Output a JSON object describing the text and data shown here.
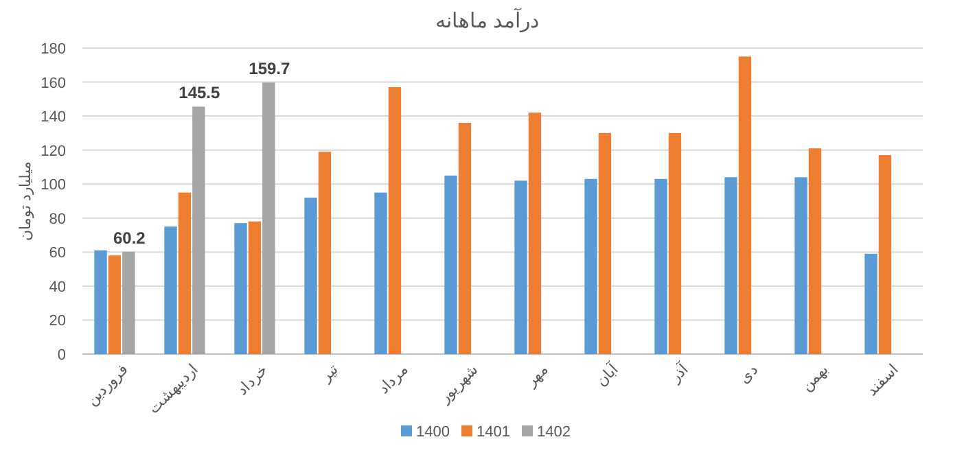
{
  "chart_data": {
    "type": "bar",
    "title": "درآمد ماهانه",
    "ylabel": "میلیارد تومان",
    "categories": [
      "فروردین",
      "اردیبهشت",
      "خرداد",
      "تیر",
      "مرداد",
      "شهریور",
      "مهر",
      "آبان",
      "آذر",
      "دی",
      "بهمن",
      "اسفند"
    ],
    "series": [
      {
        "name": "1400",
        "color": "#5b9bd5",
        "values": [
          61,
          75,
          77,
          92,
          95,
          105,
          102,
          103,
          103,
          104,
          104,
          59
        ]
      },
      {
        "name": "1401",
        "color": "#ed7d31",
        "values": [
          58,
          95,
          78,
          119,
          157,
          136,
          142,
          130,
          130,
          175,
          121,
          117
        ]
      },
      {
        "name": "1402",
        "color": "#a5a5a5",
        "values": [
          60.2,
          145.5,
          159.7,
          null,
          null,
          null,
          null,
          null,
          null,
          null,
          null,
          null
        ],
        "value_labels": [
          "60.2",
          "145.5",
          "159.7",
          null,
          null,
          null,
          null,
          null,
          null,
          null,
          null,
          null
        ]
      }
    ],
    "ylim": [
      0,
      180
    ],
    "yticks": [
      0,
      20,
      40,
      60,
      80,
      100,
      120,
      140,
      160,
      180
    ],
    "grid": "y",
    "legend": "bottom"
  }
}
